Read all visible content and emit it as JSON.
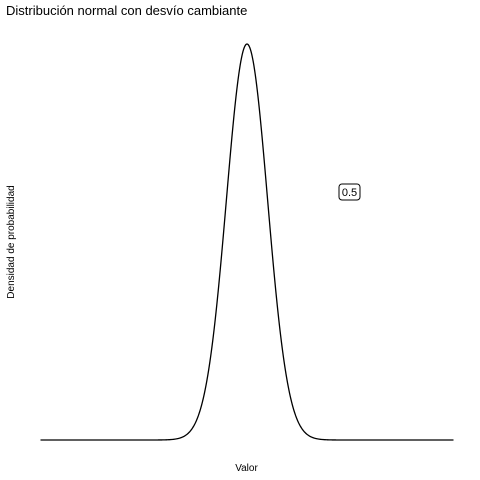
{
  "chart_data": {
    "type": "line",
    "title": "Distribución normal con desvío cambiante",
    "xlabel": "Valor",
    "ylabel": "Densidad de probabilidad",
    "series": [
      {
        "mean": 0,
        "sd": 0.5
      }
    ],
    "xlim": [
      -5,
      5
    ],
    "ylim": [
      0,
      0.8
    ],
    "grid": false,
    "annotation": {
      "text": "0.5"
    },
    "colors": {
      "line": "#000000",
      "background": "#ffffff",
      "label_border": "#000000"
    }
  }
}
